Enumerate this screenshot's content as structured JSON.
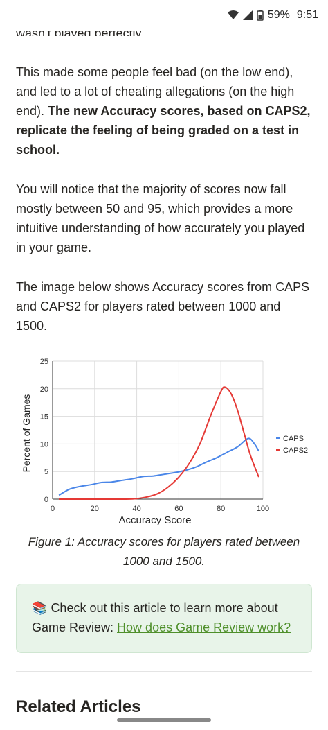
{
  "status_bar": {
    "battery": "59%",
    "time": "9:51"
  },
  "article": {
    "cutoff_text": "wasn't played perfectly.",
    "p1_normal": "This made some people feel bad (on the low end), and led to a lot of cheating allegations (on the high end). ",
    "p1_bold": "The new Accuracy scores, based on CAPS2, replicate the feeling of being graded on a test in school.",
    "p2": "You will notice that the majority of scores now fall mostly between 50 and 95, which provides a more intuitive understanding of how accurately you played in your game.",
    "p3": "The image below shows Accuracy scores from CAPS and CAPS2 for players rated between 1000 and 1500.",
    "caption": "Figure 1: Accuracy scores for players rated between 1000 and 1500.",
    "callout_icon": "books-icon",
    "callout_text": "Check out this article to learn more about Game Review: ",
    "callout_link": "How does Game Review work?",
    "related_heading": "Related Articles"
  },
  "colors": {
    "caps": "#4a86e8",
    "caps2": "#e53935",
    "callout_bg": "#e8f4e9",
    "link": "#4e8f2a"
  },
  "chart_data": {
    "type": "line",
    "xlabel": "Accuracy Score",
    "ylabel": "Percent of Games",
    "xlim": [
      0,
      100
    ],
    "ylim": [
      0,
      25
    ],
    "x_ticks": [
      0,
      20,
      40,
      60,
      80,
      100
    ],
    "y_ticks": [
      0,
      5,
      10,
      15,
      20,
      25
    ],
    "grid": true,
    "legend_position": "right",
    "series": [
      {
        "name": "CAPS",
        "color": "#4a86e8",
        "x": [
          3,
          8,
          13,
          18,
          23,
          28,
          33,
          38,
          43,
          48,
          53,
          58,
          63,
          68,
          73,
          78,
          83,
          88,
          93,
          96,
          98
        ],
        "y": [
          0.7,
          1.8,
          2.3,
          2.6,
          3.0,
          3.1,
          3.4,
          3.7,
          4.1,
          4.2,
          4.5,
          4.8,
          5.2,
          5.8,
          6.7,
          7.5,
          8.5,
          9.5,
          11.0,
          10.0,
          8.7
        ]
      },
      {
        "name": "CAPS2",
        "color": "#e53935",
        "x": [
          3,
          10,
          20,
          30,
          35,
          40,
          45,
          50,
          55,
          60,
          65,
          70,
          75,
          80,
          82,
          85,
          88,
          91,
          94,
          98
        ],
        "y": [
          0,
          0,
          0,
          0,
          0,
          0.1,
          0.4,
          1.0,
          2.2,
          4.0,
          6.5,
          10.0,
          15.0,
          19.5,
          20.3,
          19.0,
          16.0,
          12.0,
          8.0,
          4.0
        ]
      }
    ]
  }
}
